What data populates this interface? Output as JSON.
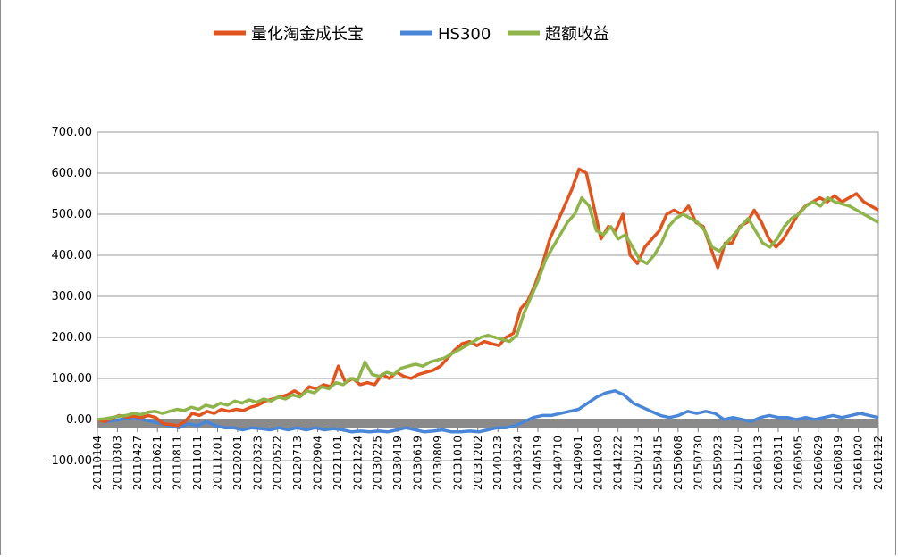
{
  "chart_data": {
    "type": "line",
    "legend": {
      "placement": "top-center"
    },
    "grid": true,
    "ylim": [
      -100,
      700
    ],
    "yticks": [
      "-100.00",
      "0.00",
      "100.00",
      "200.00",
      "300.00",
      "400.00",
      "500.00",
      "600.00",
      "700.00"
    ],
    "xtick_labels": [
      "20110104",
      "20110303",
      "20110427",
      "20110621",
      "20110811",
      "20111011",
      "20111201",
      "20120201",
      "20120323",
      "20120522",
      "20120713",
      "20120904",
      "20121101",
      "20121224",
      "20130225",
      "20130419",
      "20130619",
      "20130809",
      "20131010",
      "20131202",
      "20140123",
      "20140324",
      "20140519",
      "20140710",
      "20140901",
      "20141030",
      "20141222",
      "20150213",
      "20150415",
      "20150608",
      "20150730",
      "20150923",
      "20151120",
      "20160113",
      "20160311",
      "20160505",
      "20160629",
      "20160819",
      "20161020",
      "20161212"
    ],
    "series": [
      {
        "name": "量化淘金成长宝",
        "color": "#e2541e",
        "values": [
          0,
          -5,
          3,
          10,
          6,
          8,
          5,
          10,
          5,
          -10,
          -12,
          -15,
          -5,
          15,
          10,
          20,
          15,
          25,
          20,
          25,
          22,
          30,
          35,
          45,
          50,
          55,
          60,
          70,
          60,
          80,
          75,
          85,
          80,
          130,
          90,
          100,
          85,
          90,
          85,
          110,
          100,
          115,
          105,
          100,
          110,
          115,
          120,
          130,
          150,
          170,
          185,
          190,
          180,
          190,
          185,
          180,
          200,
          210,
          270,
          290,
          330,
          380,
          440,
          480,
          520,
          560,
          610,
          600,
          520,
          440,
          470,
          460,
          500,
          400,
          380,
          420,
          440,
          460,
          500,
          510,
          500,
          520,
          480,
          470,
          420,
          370,
          430,
          430,
          470,
          480,
          510,
          480,
          440,
          420,
          440,
          470,
          500,
          520,
          530,
          540,
          530,
          545,
          530,
          540,
          550,
          530,
          520,
          510
        ]
      },
      {
        "name": "HS300",
        "color": "#4a86d8",
        "values": [
          0,
          -5,
          -2,
          2,
          5,
          0,
          -5,
          -10,
          -15,
          -20,
          -10,
          -15,
          -5,
          -15,
          -20,
          -20,
          -25,
          -20,
          -22,
          -25,
          -20,
          -25,
          -20,
          -25,
          -20,
          -25,
          -22,
          -25,
          -30,
          -28,
          -30,
          -28,
          -30,
          -25,
          -20,
          -25,
          -30,
          -28,
          -25,
          -30,
          -30,
          -28,
          -30,
          -25,
          -20,
          -20,
          -15,
          -5,
          5,
          10,
          10,
          15,
          20,
          25,
          40,
          55,
          65,
          70,
          60,
          40,
          30,
          20,
          10,
          5,
          10,
          20,
          15,
          20,
          15,
          0,
          5,
          0,
          -5,
          5,
          10,
          5,
          5,
          0,
          5,
          0,
          5,
          10,
          5,
          10,
          15,
          10,
          5
        ]
      },
      {
        "name": "超额收益",
        "color": "#8eb44a",
        "values": [
          0,
          2,
          5,
          8,
          10,
          15,
          12,
          18,
          20,
          15,
          20,
          25,
          22,
          30,
          25,
          35,
          30,
          40,
          35,
          45,
          40,
          48,
          42,
          50,
          45,
          55,
          50,
          60,
          55,
          70,
          65,
          80,
          75,
          90,
          85,
          100,
          95,
          140,
          110,
          105,
          115,
          110,
          125,
          130,
          135,
          130,
          140,
          145,
          150,
          160,
          170,
          180,
          190,
          200,
          205,
          200,
          195,
          190,
          205,
          260,
          300,
          340,
          390,
          420,
          450,
          480,
          500,
          540,
          520,
          460,
          450,
          470,
          440,
          450,
          420,
          390,
          380,
          400,
          430,
          470,
          490,
          500,
          490,
          480,
          460,
          420,
          410,
          430,
          450,
          470,
          490,
          460,
          430,
          420,
          440,
          470,
          490,
          500,
          520,
          530,
          520,
          540,
          530,
          525,
          520,
          510,
          500,
          490,
          480
        ]
      }
    ]
  }
}
